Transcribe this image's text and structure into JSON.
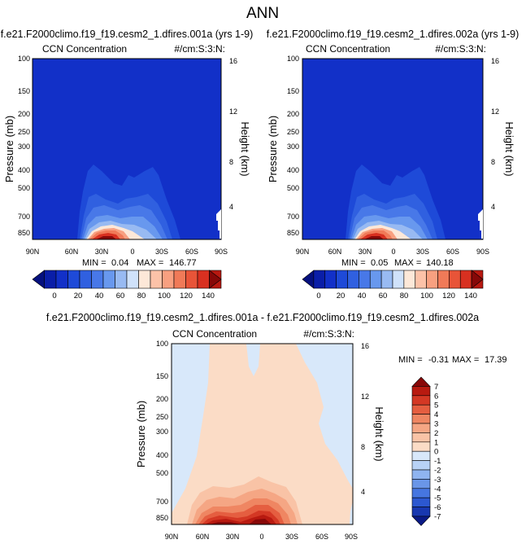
{
  "page_title": "ANN",
  "chart_data": [
    {
      "type": "contour",
      "panel": "top-left",
      "title": "f.e21.F2000climo.f19_f19.cesm2_1.dfires.001a (yrs 1-9)",
      "subtitle_left": "CCN Concentration",
      "subtitle_right": "#/cm:S:3:N:",
      "ylabel": "Pressure (mb)",
      "ylabel_right": "Height (km)",
      "x_ticks": [
        "90N",
        "60N",
        "30N",
        "0",
        "30S",
        "60S",
        "90S"
      ],
      "y_ticks": [
        "100",
        "150",
        "200",
        "250",
        "300",
        "400",
        "500",
        "700",
        "850"
      ],
      "y_ticks_right": [
        "16",
        "12",
        "8",
        "4"
      ],
      "stats": {
        "min_label": "MIN =",
        "min": "0.04",
        "max_label": "MAX =",
        "max": "146.77"
      },
      "colorbar_ticks": [
        "0",
        "20",
        "40",
        "60",
        "80",
        "100",
        "120",
        "140"
      ]
    },
    {
      "type": "contour",
      "panel": "top-right",
      "title": "f.e21.F2000climo.f19_f19.cesm2_1.dfires.002a (yrs 1-9)",
      "subtitle_left": "CCN Concentration",
      "subtitle_right": "#/cm:S:3:N:",
      "ylabel": "Pressure (mb)",
      "ylabel_right": "Height (km)",
      "x_ticks": [
        "90N",
        "60N",
        "30N",
        "0",
        "30S",
        "60S",
        "90S"
      ],
      "y_ticks": [
        "100",
        "150",
        "200",
        "250",
        "300",
        "400",
        "500",
        "700",
        "850"
      ],
      "y_ticks_right": [
        "16",
        "12",
        "8",
        "4"
      ],
      "stats": {
        "min_label": "MIN =",
        "min": "0.05",
        "max_label": "MAX =",
        "max": "140.18"
      },
      "colorbar_ticks": [
        "0",
        "20",
        "40",
        "60",
        "80",
        "100",
        "120",
        "140"
      ]
    },
    {
      "type": "contour",
      "panel": "bottom",
      "title": "f.e21.F2000climo.f19_f19.cesm2_1.dfires.001a - f.e21.F2000climo.f19_f19.cesm2_1.dfires.002a",
      "subtitle_left": "CCN Concentration",
      "subtitle_right": "#/cm:S:3:N:",
      "ylabel": "Pressure (mb)",
      "ylabel_right": "Height (km)",
      "x_ticks": [
        "90N",
        "60N",
        "30N",
        "0",
        "30S",
        "60S",
        "90S"
      ],
      "y_ticks": [
        "100",
        "150",
        "200",
        "250",
        "300",
        "400",
        "500",
        "700",
        "850"
      ],
      "y_ticks_right": [
        "16",
        "12",
        "8",
        "4"
      ],
      "stats": {
        "min_label": "MIN =",
        "min": "-0.31",
        "max_label": "MAX =",
        "max": "17.39"
      },
      "colorbar_ticks": [
        "7",
        "6",
        "5",
        "4",
        "3",
        "2",
        "1",
        "0",
        "-1",
        "-2",
        "-3",
        "-4",
        "-5",
        "-6",
        "-7"
      ]
    }
  ],
  "colors": {
    "seq_palette": [
      "#05107e",
      "#0a1ea8",
      "#1230c8",
      "#1e4ad8",
      "#3060e0",
      "#4878e8",
      "#6898ee",
      "#98baf2",
      "#d0e2fa",
      "#fde8d8",
      "#fcc2a8",
      "#f8a080",
      "#f07a58",
      "#e85438",
      "#d83020",
      "#b81810",
      "#860808"
    ],
    "diff_pos": [
      "#fbdcc6",
      "#f9c3a6",
      "#f5a684",
      "#ef8662",
      "#e55e40",
      "#d43824",
      "#b81a10",
      "#880808"
    ],
    "diff_neg": [
      "#d8e8fa",
      "#b8d2f6",
      "#8fb4f0",
      "#6a96e8",
      "#4676e0",
      "#2c58d0",
      "#1838b0",
      "#0a1a86"
    ]
  }
}
